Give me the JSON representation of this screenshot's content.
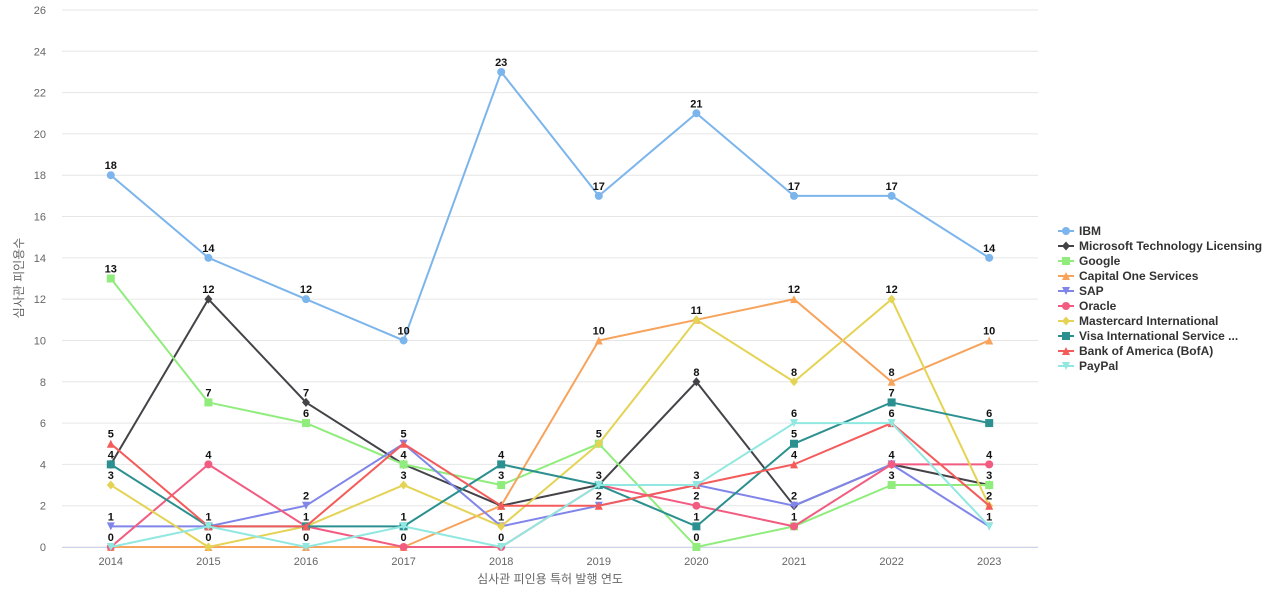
{
  "chart_data": {
    "type": "line",
    "xlabel": "심사관 피인용 특허 발행 연도",
    "ylabel": "심사관 피인용수",
    "x": [
      "2014",
      "2015",
      "2016",
      "2017",
      "2018",
      "2019",
      "2020",
      "2021",
      "2022",
      "2023"
    ],
    "ylim": [
      0,
      26
    ],
    "yticks": [
      0,
      2,
      4,
      6,
      8,
      10,
      12,
      14,
      16,
      18,
      20,
      22,
      24,
      26
    ],
    "grid": true,
    "legend_position": "right",
    "series": [
      {
        "name": "IBM",
        "color": "#7cb5ec",
        "marker": "circle",
        "values": [
          18,
          14,
          12,
          10,
          23,
          17,
          21,
          17,
          17,
          14
        ]
      },
      {
        "name": "Microsoft Technology Licensing",
        "color": "#434348",
        "marker": "diamond",
        "values": [
          4,
          12,
          7,
          4,
          2,
          3,
          8,
          2,
          4,
          3
        ]
      },
      {
        "name": "Google",
        "color": "#90ed7d",
        "marker": "square",
        "values": [
          13,
          7,
          6,
          4,
          3,
          5,
          0,
          1,
          3,
          3
        ]
      },
      {
        "name": "Capital One Services",
        "color": "#f7a35c",
        "marker": "triangle",
        "values": [
          0,
          0,
          0,
          0,
          2,
          10,
          11,
          12,
          8,
          10
        ]
      },
      {
        "name": "SAP",
        "color": "#8085e9",
        "marker": "triangle-down",
        "values": [
          1,
          1,
          2,
          5,
          1,
          2,
          3,
          2,
          4,
          1
        ]
      },
      {
        "name": "Oracle",
        "color": "#f15c80",
        "marker": "circle",
        "values": [
          0,
          4,
          1,
          0,
          0,
          3,
          2,
          1,
          4,
          4
        ]
      },
      {
        "name": "Mastercard International",
        "color": "#e4d354",
        "marker": "diamond",
        "values": [
          3,
          0,
          1,
          3,
          1,
          5,
          11,
          8,
          12,
          2
        ]
      },
      {
        "name": "Visa International Service ...",
        "color": "#2b908f",
        "marker": "square",
        "values": [
          4,
          1,
          1,
          1,
          4,
          3,
          1,
          5,
          7,
          6
        ]
      },
      {
        "name": "Bank of America (BofA)",
        "color": "#f45b5b",
        "marker": "triangle",
        "values": [
          5,
          1,
          1,
          5,
          2,
          2,
          3,
          4,
          6,
          2
        ]
      },
      {
        "name": "PayPal",
        "color": "#91e8e1",
        "marker": "triangle-down",
        "values": [
          0,
          1,
          0,
          1,
          0,
          3,
          3,
          6,
          6,
          1
        ]
      }
    ],
    "data_labels": [
      {
        "x": "2014",
        "y": 18,
        "text": "18"
      },
      {
        "x": "2014",
        "y": 13,
        "text": "13"
      },
      {
        "x": "2014",
        "y": 5,
        "text": "5"
      },
      {
        "x": "2014",
        "y": 4,
        "text": "4"
      },
      {
        "x": "2014",
        "y": 3,
        "text": "3"
      },
      {
        "x": "2014",
        "y": 1,
        "text": "1"
      },
      {
        "x": "2014",
        "y": 0,
        "text": "0"
      },
      {
        "x": "2015",
        "y": 14,
        "text": "14"
      },
      {
        "x": "2015",
        "y": 12,
        "text": "12"
      },
      {
        "x": "2015",
        "y": 7,
        "text": "7"
      },
      {
        "x": "2015",
        "y": 4,
        "text": "4"
      },
      {
        "x": "2015",
        "y": 1,
        "text": "1"
      },
      {
        "x": "2015",
        "y": 0,
        "text": "0"
      },
      {
        "x": "2016",
        "y": 12,
        "text": "12"
      },
      {
        "x": "2016",
        "y": 7,
        "text": "7"
      },
      {
        "x": "2016",
        "y": 6,
        "text": "6"
      },
      {
        "x": "2016",
        "y": 2,
        "text": "2"
      },
      {
        "x": "2016",
        "y": 1,
        "text": "1"
      },
      {
        "x": "2016",
        "y": 0,
        "text": "0"
      },
      {
        "x": "2017",
        "y": 10,
        "text": "10"
      },
      {
        "x": "2017",
        "y": 5,
        "text": "5"
      },
      {
        "x": "2017",
        "y": 4,
        "text": "4"
      },
      {
        "x": "2017",
        "y": 3,
        "text": "3"
      },
      {
        "x": "2017",
        "y": 1,
        "text": "1"
      },
      {
        "x": "2017",
        "y": 0,
        "text": "0"
      },
      {
        "x": "2018",
        "y": 23,
        "text": "23"
      },
      {
        "x": "2018",
        "y": 4,
        "text": "4"
      },
      {
        "x": "2018",
        "y": 3,
        "text": "3"
      },
      {
        "x": "2018",
        "y": 1,
        "text": "1"
      },
      {
        "x": "2018",
        "y": 0,
        "text": "0"
      },
      {
        "x": "2019",
        "y": 17,
        "text": "17"
      },
      {
        "x": "2019",
        "y": 10,
        "text": "10"
      },
      {
        "x": "2019",
        "y": 5,
        "text": "5"
      },
      {
        "x": "2019",
        "y": 3,
        "text": "3"
      },
      {
        "x": "2019",
        "y": 2,
        "text": "2"
      },
      {
        "x": "2020",
        "y": 21,
        "text": "21"
      },
      {
        "x": "2020",
        "y": 11,
        "text": "11"
      },
      {
        "x": "2020",
        "y": 8,
        "text": "8"
      },
      {
        "x": "2020",
        "y": 3,
        "text": "3"
      },
      {
        "x": "2020",
        "y": 2,
        "text": "2"
      },
      {
        "x": "2020",
        "y": 1,
        "text": "1"
      },
      {
        "x": "2020",
        "y": 0,
        "text": "0"
      },
      {
        "x": "2021",
        "y": 17,
        "text": "17"
      },
      {
        "x": "2021",
        "y": 12,
        "text": "12"
      },
      {
        "x": "2021",
        "y": 8,
        "text": "8"
      },
      {
        "x": "2021",
        "y": 6,
        "text": "6"
      },
      {
        "x": "2021",
        "y": 5,
        "text": "5"
      },
      {
        "x": "2021",
        "y": 4,
        "text": "4"
      },
      {
        "x": "2021",
        "y": 2,
        "text": "2"
      },
      {
        "x": "2021",
        "y": 1,
        "text": "1"
      },
      {
        "x": "2022",
        "y": 17,
        "text": "17"
      },
      {
        "x": "2022",
        "y": 12,
        "text": "12"
      },
      {
        "x": "2022",
        "y": 8,
        "text": "8"
      },
      {
        "x": "2022",
        "y": 7,
        "text": "7"
      },
      {
        "x": "2022",
        "y": 6,
        "text": "6"
      },
      {
        "x": "2022",
        "y": 4,
        "text": "4"
      },
      {
        "x": "2022",
        "y": 3,
        "text": "3"
      },
      {
        "x": "2023",
        "y": 14,
        "text": "14"
      },
      {
        "x": "2023",
        "y": 10,
        "text": "10"
      },
      {
        "x": "2023",
        "y": 6,
        "text": "6"
      },
      {
        "x": "2023",
        "y": 4,
        "text": "4"
      },
      {
        "x": "2023",
        "y": 3,
        "text": "3"
      },
      {
        "x": "2023",
        "y": 2,
        "text": "2"
      },
      {
        "x": "2023",
        "y": 1,
        "text": "1"
      }
    ]
  }
}
